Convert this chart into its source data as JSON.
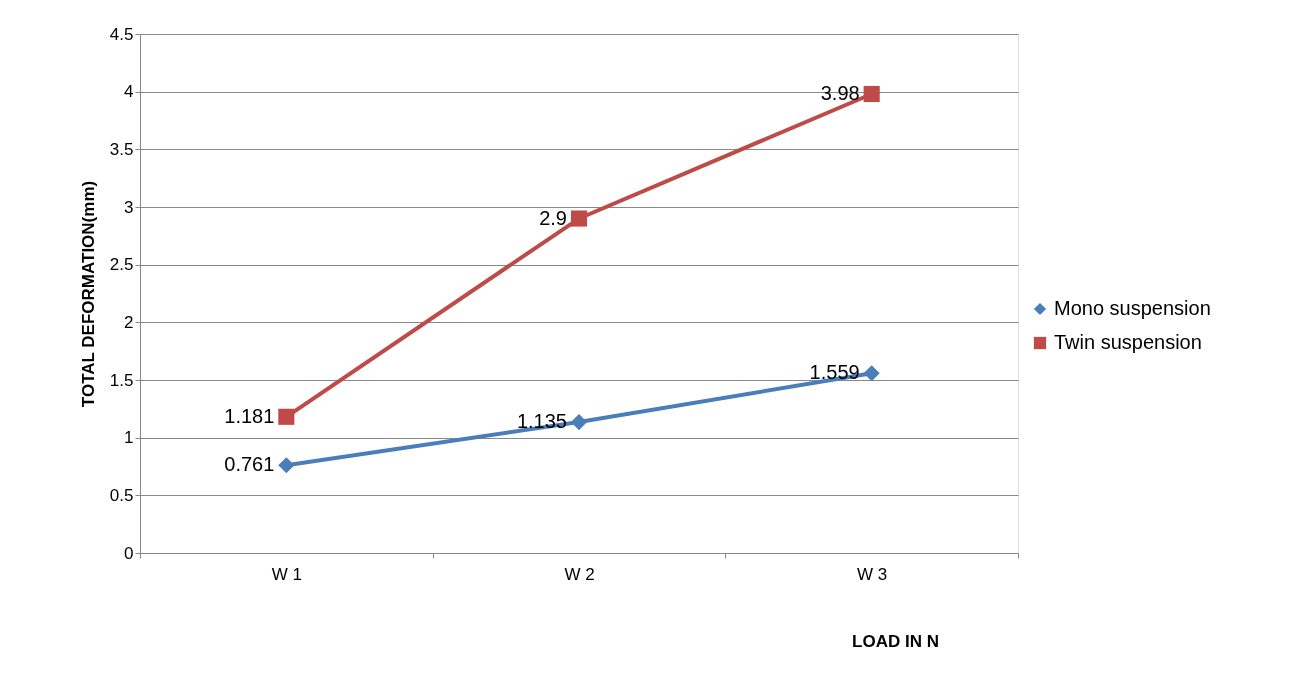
{
  "chart_data": {
    "type": "line",
    "xlabel": "LOAD IN N",
    "ylabel": "TOTAL DEFORMATION(mm)",
    "categories": [
      "W 1",
      "W 2",
      "W 3"
    ],
    "series": [
      {
        "name": "Mono suspension",
        "color": "#4a7ebb",
        "marker": "diamond",
        "values": [
          0.761,
          1.135,
          1.559
        ]
      },
      {
        "name": "Twin suspension",
        "color": "#be4b48",
        "marker": "square",
        "values": [
          1.181,
          2.9,
          3.98
        ]
      }
    ],
    "ylim": [
      0,
      4.5
    ],
    "yticks": [
      0,
      0.5,
      1,
      1.5,
      2,
      2.5,
      3,
      3.5,
      4,
      4.5
    ],
    "grid": "y",
    "legend": "right",
    "data_labels": true,
    "line_style": "solid"
  }
}
